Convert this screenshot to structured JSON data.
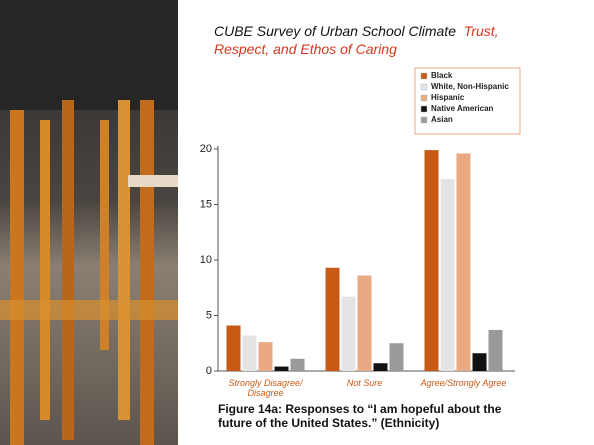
{
  "title": "CUBE Survey of Urban School Climate",
  "subtitle": "Trust, Respect, and Ethos of Caring",
  "chart_data": {
    "type": "bar",
    "caption": "Figure 14a: Responses to “I am hopeful about the future of the United States.” (Ethnicity)",
    "categories": [
      "Strongly Disagree/ Disagree",
      "Not Sure",
      "Agree/Strongly Agree"
    ],
    "series": [
      {
        "name": "Black",
        "color": "#c75a14",
        "values": [
          4.1,
          9.3,
          19.9
        ]
      },
      {
        "name": "White, Non-Hispanic",
        "color": "#e4e4e4",
        "values": [
          3.2,
          6.7,
          17.3
        ]
      },
      {
        "name": "Hispanic",
        "color": "#e8a983",
        "values": [
          2.6,
          8.6,
          19.6
        ]
      },
      {
        "name": "Native American",
        "color": "#111111",
        "values": [
          0.4,
          0.7,
          1.6
        ]
      },
      {
        "name": "Asian",
        "color": "#9a9a9a",
        "values": [
          1.1,
          2.5,
          3.7
        ]
      }
    ],
    "ylim": [
      0,
      20
    ],
    "yticks": [
      0,
      5,
      10,
      15,
      20
    ],
    "legend": "top-right"
  }
}
